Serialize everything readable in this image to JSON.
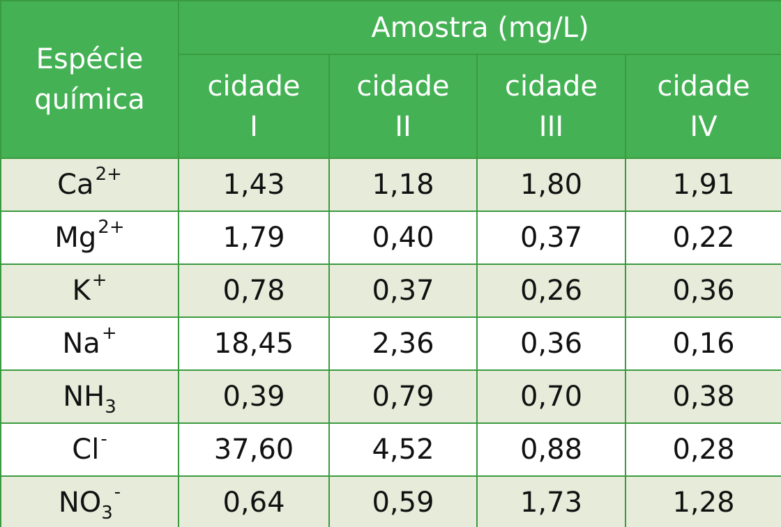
{
  "header": {
    "species_label_line1": "Espécie",
    "species_label_line2": "química",
    "sample_label": "Amostra (mg/L)",
    "cities": [
      {
        "line1": "cidade",
        "line2": "I"
      },
      {
        "line1": "cidade",
        "line2": "II"
      },
      {
        "line1": "cidade",
        "line2": "III"
      },
      {
        "line1": "cidade",
        "line2": "IV"
      }
    ]
  },
  "rows": [
    {
      "base": "Ca",
      "sub": "",
      "sup": "2+",
      "values": [
        "1,43",
        "1,18",
        "1,80",
        "1,91"
      ]
    },
    {
      "base": "Mg",
      "sub": "",
      "sup": "2+",
      "values": [
        "1,79",
        "0,40",
        "0,37",
        "0,22"
      ]
    },
    {
      "base": "K",
      "sub": "",
      "sup": "+",
      "values": [
        "0,78",
        "0,37",
        "0,26",
        "0,36"
      ]
    },
    {
      "base": "Na",
      "sub": "",
      "sup": "+",
      "values": [
        "18,45",
        "2,36",
        "0,36",
        "0,16"
      ]
    },
    {
      "base": "NH",
      "sub": "3",
      "sup": "",
      "values": [
        "0,39",
        "0,79",
        "0,70",
        "0,38"
      ]
    },
    {
      "base": "Cl",
      "sub": "",
      "sup": "-",
      "values": [
        "37,60",
        "4,52",
        "0,88",
        "0,28"
      ]
    },
    {
      "base": "NO",
      "sub": "3",
      "sup": "-",
      "values": [
        "0,64",
        "0,59",
        "1,73",
        "1,28"
      ]
    }
  ],
  "colors": {
    "header_green": "#44b254",
    "border_green": "#3a9a3f",
    "shaded_row": "#e6ecd9"
  }
}
